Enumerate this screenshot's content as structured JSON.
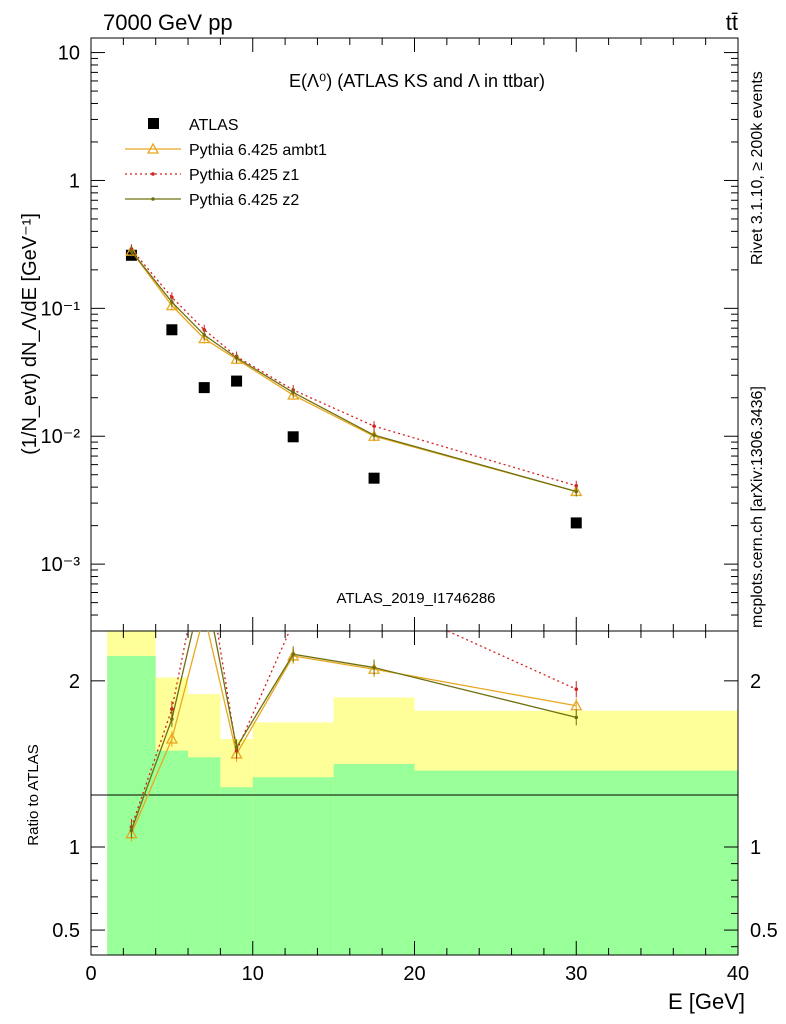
{
  "header": {
    "left": "7000 GeV pp",
    "right": "tt̄"
  },
  "side_labels": {
    "rivet": "Rivet 3.1.10, ≥ 200k events",
    "mcplots": "mcplots.cern.ch [arXiv:1306.3436]"
  },
  "chart_data": {
    "type": "line",
    "title": "E(Λ⁰) (ATLAS KS and Λ in ttbar)",
    "analysis_label": "ATLAS_2019_I1746286",
    "xlabel": "E [GeV]",
    "ylabel": "(1/N_evt) dN_Λ/dE [GeV⁻¹]",
    "ratio_ylabel": "Ratio to ATLAS",
    "xlim": [
      0,
      40
    ],
    "ylim": [
      0.0003,
      13
    ],
    "yscale": "log",
    "ratio_ylim": [
      0.35,
      2.3
    ],
    "x_ticks": [
      "0",
      "10",
      "20",
      "30",
      "40"
    ],
    "y_ticks": [
      "10⁻³",
      "10⁻²",
      "10⁻¹",
      "1",
      "10"
    ],
    "ratio_ticks": [
      "0.5",
      "1",
      "2"
    ],
    "legend_position": "top-left",
    "colors": {
      "atlas": "#000000",
      "ambt1": "#e8a820",
      "z1": "#d42020",
      "z2": "#6f7010",
      "band_inner": "#99ff99",
      "band_outer": "#ffff99"
    },
    "bins": [
      {
        "x0": 1,
        "x1": 4,
        "x": 2.5,
        "inner": [
          0.35,
          2.15
        ],
        "outer": [
          0.35,
          2.3
        ]
      },
      {
        "x0": 4,
        "x1": 6,
        "x": 5,
        "inner": [
          0.35,
          1.58
        ],
        "outer": [
          0.48,
          2.02
        ]
      },
      {
        "x0": 6,
        "x1": 8,
        "x": 7,
        "inner": [
          0.35,
          1.54
        ],
        "outer": [
          0.54,
          1.92
        ]
      },
      {
        "x0": 8,
        "x1": 10,
        "x": 9,
        "inner": [
          0.35,
          1.36
        ],
        "outer": [
          0.4,
          1.65
        ]
      },
      {
        "x0": 10,
        "x1": 15,
        "x": 12.5,
        "inner": [
          0.35,
          1.42
        ],
        "outer": [
          0.35,
          1.75
        ]
      },
      {
        "x0": 15,
        "x1": 20,
        "x": 17.5,
        "inner": [
          0.35,
          1.5
        ],
        "outer": [
          0.35,
          1.9
        ]
      },
      {
        "x0": 20,
        "x1": 40,
        "x": 30,
        "inner": [
          0.35,
          1.46
        ],
        "outer": [
          0.35,
          1.82
        ]
      }
    ],
    "series": [
      {
        "name": "ATLAS",
        "x": [
          2.5,
          5,
          7,
          9,
          12.5,
          17.5,
          30
        ],
        "values": [
          0.26,
          0.068,
          0.024,
          0.027,
          0.0099,
          0.0047,
          0.0021
        ],
        "ratio": [
          1,
          1,
          1,
          1,
          1,
          1,
          1
        ]
      },
      {
        "name": "Pythia 6.425 ambt1",
        "x": [
          2.5,
          5,
          7,
          9,
          12.5,
          17.5,
          30
        ],
        "values": [
          0.28,
          0.105,
          0.058,
          0.04,
          0.021,
          0.01,
          0.0037
        ],
        "ratio": [
          1.08,
          1.65,
          2.4,
          1.56,
          2.15,
          2.07,
          1.85
        ]
      },
      {
        "name": "Pythia 6.425 z1",
        "x": [
          2.5,
          5,
          7,
          9,
          12.5,
          17.5,
          30
        ],
        "values": [
          0.29,
          0.122,
          0.068,
          0.042,
          0.023,
          0.012,
          0.0041
        ],
        "ratio": [
          1.12,
          1.83,
          2.8,
          1.58,
          2.35,
          2.5,
          1.95
        ]
      },
      {
        "name": "Pythia 6.425 z2",
        "x": [
          2.5,
          5,
          7,
          9,
          12.5,
          17.5,
          30
        ],
        "values": [
          0.28,
          0.112,
          0.062,
          0.041,
          0.022,
          0.0102,
          0.0037
        ],
        "ratio": [
          1.1,
          1.77,
          2.6,
          1.6,
          2.16,
          2.08,
          1.78
        ]
      }
    ]
  }
}
